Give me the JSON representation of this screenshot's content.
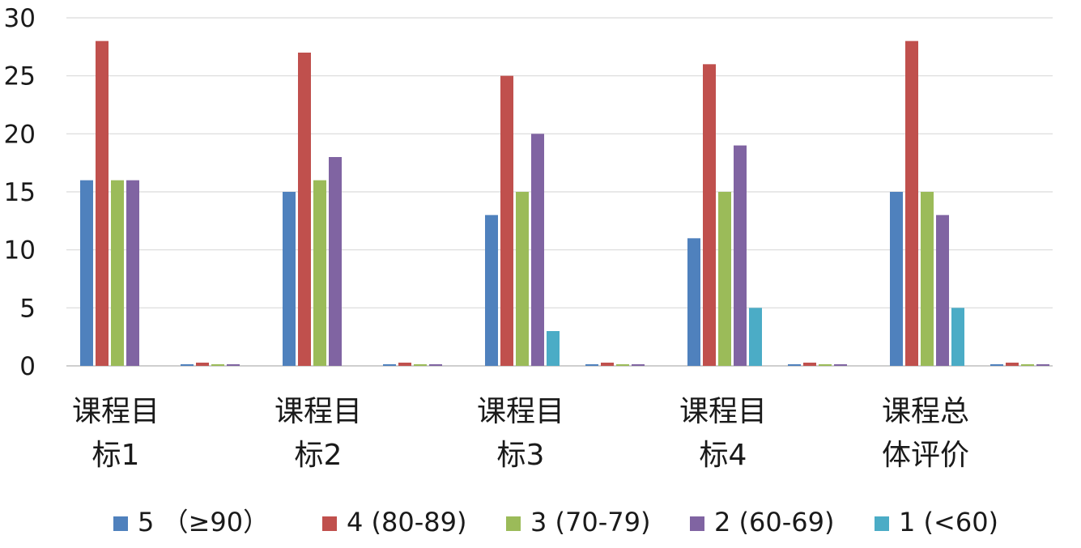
{
  "chart_data": {
    "type": "bar",
    "title": "",
    "xlabel": "",
    "ylabel": "",
    "ylim": [
      0,
      30
    ],
    "yticks": [
      0,
      5,
      10,
      15,
      20,
      25,
      30
    ],
    "grid": true,
    "legend_position": "bottom",
    "categories": [
      [
        "课程目",
        "标1"
      ],
      [
        "课程目",
        "标2"
      ],
      [
        "课程目",
        "标3"
      ],
      [
        "课程目",
        "标4"
      ],
      [
        "课程总",
        "体评价"
      ]
    ],
    "series": [
      {
        "name": "5 （≥90）",
        "color": "#4F81BD",
        "values": [
          16,
          15,
          13,
          11,
          15
        ]
      },
      {
        "name": "4 (80-89)",
        "color": "#C0504D",
        "values": [
          28,
          27,
          25,
          26,
          28
        ]
      },
      {
        "name": "3 (70-79)",
        "color": "#9BBB59",
        "values": [
          16,
          16,
          15,
          15,
          15
        ]
      },
      {
        "name": "2 (60-69)",
        "color": "#8064A2",
        "values": [
          16,
          18,
          20,
          19,
          13
        ]
      },
      {
        "name": "1 (<60)",
        "color": "#4BACC6",
        "values": [
          0,
          0,
          3,
          5,
          5
        ]
      }
    ]
  }
}
